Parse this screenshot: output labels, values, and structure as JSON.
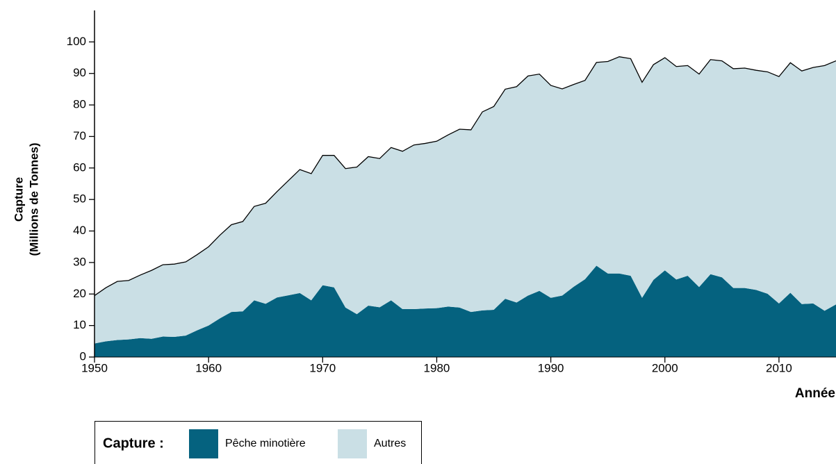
{
  "chart_data": {
    "type": "stacked_area",
    "xlabel": "Année",
    "ylabel": [
      "Capture",
      "(Millions de Tonnes)"
    ],
    "legend_title": "Capture :",
    "x": [
      1950,
      1951,
      1952,
      1953,
      1954,
      1955,
      1956,
      1957,
      1958,
      1959,
      1960,
      1961,
      1962,
      1963,
      1964,
      1965,
      1966,
      1967,
      1968,
      1969,
      1970,
      1971,
      1972,
      1973,
      1974,
      1975,
      1976,
      1977,
      1978,
      1979,
      1980,
      1981,
      1982,
      1983,
      1984,
      1985,
      1986,
      1987,
      1988,
      1989,
      1990,
      1991,
      1992,
      1993,
      1994,
      1995,
      1996,
      1997,
      1998,
      1999,
      2000,
      2001,
      2002,
      2003,
      2004,
      2005,
      2006,
      2007,
      2008,
      2009,
      2010,
      2011,
      2012,
      2013,
      2014,
      2015
    ],
    "series": [
      {
        "name": "Pêche minotière",
        "color": "#05627f",
        "values": [
          4.3,
          5,
          5.4,
          5.6,
          6,
          5.8,
          6.5,
          6.4,
          6.8,
          8.5,
          10,
          12.3,
          14.3,
          14.5,
          18,
          16.9,
          18.9,
          19.6,
          20.3,
          18,
          22.8,
          22.1,
          15.7,
          13.6,
          16.3,
          15.8,
          18,
          15.2,
          15.2,
          15.4,
          15.5,
          16,
          15.7,
          14.3,
          14.8,
          15,
          18.5,
          17.3,
          19.5,
          21,
          18.8,
          19.5,
          22.3,
          24.7,
          29,
          26.5,
          26.5,
          25.8,
          18.8,
          24.5,
          27.5,
          24.6,
          25.8,
          22.2,
          26.3,
          25.3,
          21.9,
          21.9,
          21.3,
          20.1,
          17,
          20.4,
          16.8,
          17,
          14.7,
          16.7
        ]
      },
      {
        "name": "Autres",
        "color": "#cadfe5",
        "values": [
          15.2,
          17.0,
          18.6,
          18.7,
          20.0,
          21.7,
          22.8,
          23.1,
          23.4,
          24.0,
          25.0,
          26.4,
          27.7,
          28.5,
          29.8,
          31.9,
          33.6,
          36.4,
          39.2,
          40.2,
          41.2,
          41.9,
          44.1,
          46.7,
          47.3,
          47.2,
          48.5,
          50.1,
          52.1,
          52.4,
          53.0,
          54.5,
          56.6,
          57.8,
          63.0,
          64.5,
          66.5,
          68.5,
          69.7,
          68.8,
          67.4,
          65.6,
          64.2,
          63.1,
          64.5,
          67.3,
          68.8,
          68.9,
          68.4,
          68.3,
          67.5,
          67.6,
          66.7,
          67.6,
          68.1,
          68.7,
          69.6,
          69.8,
          69.7,
          70.4,
          72.0,
          73.0,
          74.0,
          74.9,
          77.8,
          77.3
        ]
      }
    ],
    "xlim": [
      1950,
      2015
    ],
    "xticks": [
      1950,
      1960,
      1970,
      1980,
      1990,
      2000,
      2010
    ],
    "ylim": [
      0,
      110
    ],
    "yticks": [
      0,
      10,
      20,
      30,
      40,
      50,
      60,
      70,
      80,
      90,
      100
    ]
  }
}
